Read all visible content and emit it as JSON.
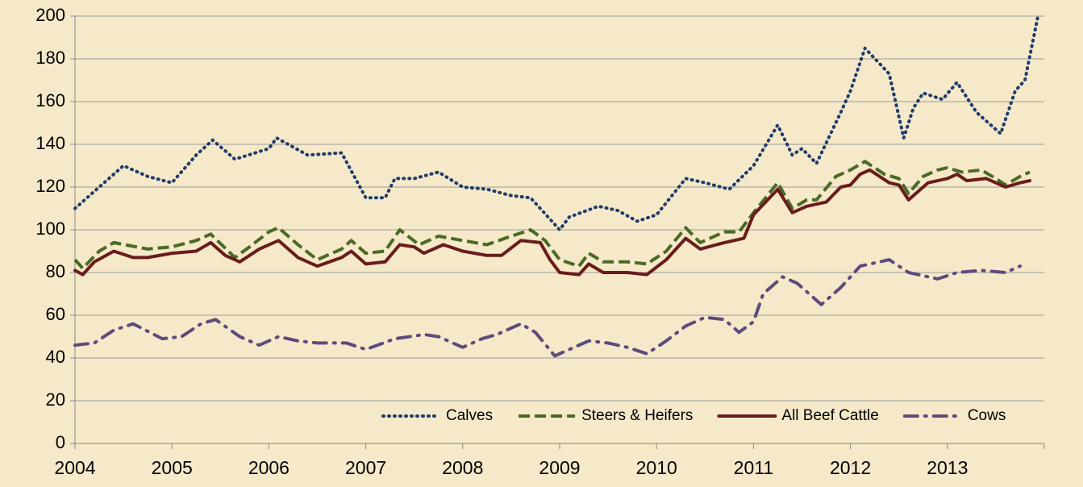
{
  "chart_data": {
    "type": "line",
    "xlim": [
      2004,
      2014
    ],
    "xticks": [
      2004,
      2005,
      2006,
      2007,
      2008,
      2009,
      2010,
      2011,
      2012,
      2013
    ],
    "ylim": [
      0,
      200
    ],
    "yticks": [
      0,
      20,
      40,
      60,
      80,
      100,
      120,
      140,
      160,
      180,
      200
    ],
    "grid": true,
    "legend": "bottom-right",
    "series": [
      {
        "name": "Calves",
        "color": "#1f3c6b",
        "style": "dotted",
        "x": [
          2004.0,
          2004.25,
          2004.5,
          2004.75,
          2005.0,
          2005.25,
          2005.42,
          2005.65,
          2006.0,
          2006.08,
          2006.4,
          2006.75,
          2007.0,
          2007.2,
          2007.3,
          2007.5,
          2007.75,
          2008.0,
          2008.25,
          2008.5,
          2008.7,
          2009.0,
          2009.1,
          2009.4,
          2009.6,
          2009.8,
          2010.0,
          2010.3,
          2010.5,
          2010.75,
          2011.0,
          2011.25,
          2011.4,
          2011.5,
          2011.65,
          2011.9,
          2012.0,
          2012.15,
          2012.4,
          2012.55,
          2012.65,
          2012.75,
          2012.95,
          2013.1,
          2013.3,
          2013.55,
          2013.7,
          2013.8,
          2013.93
        ],
        "values": [
          110,
          120,
          130,
          125,
          122,
          135,
          142,
          133,
          138,
          143,
          135,
          136,
          115,
          115,
          124,
          124,
          127,
          120,
          119,
          116,
          115,
          100,
          106,
          111,
          109,
          104,
          107,
          124,
          122,
          119,
          130,
          149,
          135,
          138,
          131,
          155,
          165,
          185,
          173,
          143,
          157,
          164,
          161,
          169,
          155,
          145,
          165,
          170,
          199
        ]
      },
      {
        "name": "Steers & Heifers",
        "color": "#4b6a24",
        "style": "dashed",
        "x": [
          2004.0,
          2004.08,
          2004.25,
          2004.4,
          2004.75,
          2005.0,
          2005.25,
          2005.4,
          2005.65,
          2005.8,
          2006.0,
          2006.1,
          2006.3,
          2006.5,
          2006.75,
          2006.85,
          2007.0,
          2007.2,
          2007.35,
          2007.55,
          2007.75,
          2008.0,
          2008.25,
          2008.5,
          2008.7,
          2008.85,
          2009.0,
          2009.2,
          2009.3,
          2009.45,
          2009.7,
          2009.9,
          2010.1,
          2010.3,
          2010.45,
          2010.7,
          2010.85,
          2011.0,
          2011.25,
          2011.4,
          2011.55,
          2011.65,
          2011.85,
          2012.0,
          2012.15,
          2012.35,
          2012.5,
          2012.6,
          2012.75,
          2012.9,
          2013.0,
          2013.15,
          2013.35,
          2013.5,
          2013.6,
          2013.75,
          2013.85
        ],
        "values": [
          86,
          82,
          90,
          94,
          91,
          92,
          95,
          98,
          87,
          92,
          99,
          101,
          93,
          86,
          91,
          95,
          89,
          90,
          100,
          93,
          97,
          95,
          93,
          97,
          100,
          95,
          86,
          83,
          89,
          85,
          85,
          84,
          90,
          101,
          94,
          99,
          99,
          108,
          122,
          110,
          114,
          114,
          125,
          128,
          132,
          126,
          124,
          117,
          125,
          128,
          129,
          127,
          128,
          124,
          121,
          125,
          127
        ]
      },
      {
        "name": "All Beef Cattle",
        "color": "#6a1c1c",
        "style": "solid",
        "x": [
          2004.0,
          2004.08,
          2004.2,
          2004.4,
          2004.6,
          2004.75,
          2005.0,
          2005.25,
          2005.4,
          2005.55,
          2005.7,
          2005.9,
          2006.1,
          2006.3,
          2006.5,
          2006.75,
          2006.85,
          2007.0,
          2007.2,
          2007.35,
          2007.5,
          2007.6,
          2007.8,
          2008.0,
          2008.25,
          2008.4,
          2008.6,
          2008.8,
          2008.9,
          2009.0,
          2009.2,
          2009.3,
          2009.45,
          2009.7,
          2009.9,
          2010.1,
          2010.3,
          2010.45,
          2010.7,
          2010.9,
          2011.0,
          2011.25,
          2011.4,
          2011.55,
          2011.75,
          2011.9,
          2012.0,
          2012.1,
          2012.2,
          2012.4,
          2012.5,
          2012.6,
          2012.8,
          2013.0,
          2013.1,
          2013.2,
          2013.4,
          2013.6,
          2013.75,
          2013.85
        ],
        "values": [
          81,
          79,
          85,
          90,
          87,
          87,
          89,
          90,
          94,
          88,
          85,
          91,
          95,
          87,
          83,
          87,
          90,
          84,
          85,
          93,
          92,
          89,
          93,
          90,
          88,
          88,
          95,
          94,
          86,
          80,
          79,
          84,
          80,
          80,
          79,
          86,
          96,
          91,
          94,
          96,
          107,
          119,
          108,
          111,
          113,
          120,
          121,
          126,
          128,
          122,
          121,
          114,
          122,
          124,
          126,
          123,
          124,
          120,
          122,
          123
        ]
      },
      {
        "name": "Cows",
        "color": "#5e4b7c",
        "style": "dashdot",
        "x": [
          2004.0,
          2004.2,
          2004.4,
          2004.6,
          2004.9,
          2005.1,
          2005.3,
          2005.45,
          2005.7,
          2005.9,
          2006.1,
          2006.3,
          2006.5,
          2006.8,
          2007.0,
          2007.3,
          2007.6,
          2007.75,
          2008.0,
          2008.2,
          2008.35,
          2008.6,
          2008.75,
          2008.95,
          2009.1,
          2009.3,
          2009.5,
          2009.7,
          2009.9,
          2010.1,
          2010.3,
          2010.5,
          2010.7,
          2010.85,
          2011.0,
          2011.1,
          2011.3,
          2011.45,
          2011.7,
          2011.9,
          2012.1,
          2012.4,
          2012.6,
          2012.9,
          2013.1,
          2013.35,
          2013.6,
          2013.75
        ],
        "values": [
          46,
          47,
          53,
          56,
          49,
          50,
          56,
          58,
          50,
          46,
          50,
          48,
          47,
          47,
          44,
          49,
          51,
          50,
          45,
          49,
          51,
          56,
          52,
          41,
          44,
          48,
          47,
          45,
          42,
          48,
          55,
          59,
          58,
          52,
          57,
          70,
          78,
          75,
          65,
          73,
          83,
          86,
          80,
          77,
          80,
          81,
          80,
          83
        ]
      }
    ]
  }
}
